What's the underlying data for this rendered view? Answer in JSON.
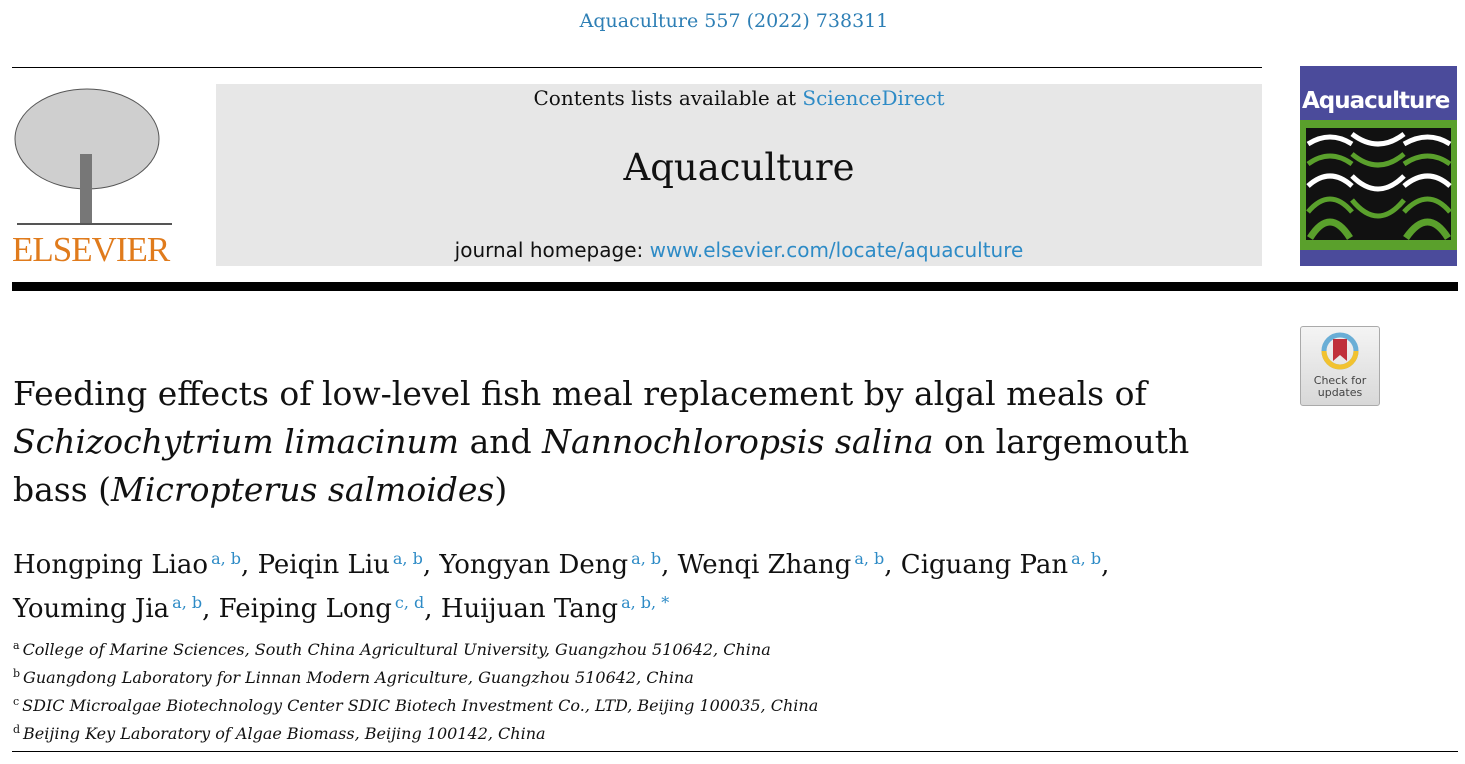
{
  "header": {
    "citation": "Aquaculture 557 (2022) 738311",
    "publisher_logo": "ELSEVIER",
    "contents_prefix": "Contents lists available at ",
    "contents_link": "ScienceDirect",
    "journal_name": "Aquaculture",
    "homepage_prefix": "journal homepage: ",
    "homepage_link": "www.elsevier.com/locate/aquaculture",
    "cover_title": "Aquaculture",
    "crossmark_label": "Check for updates"
  },
  "article": {
    "title_parts": [
      "Feeding effects of low-level fish meal replacement by algal meals of ",
      "Schizochytrium limacinum",
      " and ",
      "Nannochloropsis salina",
      " on largemouth bass (",
      "Micropterus salmoides",
      ")"
    ],
    "authors": [
      {
        "name": "Hongping Liao",
        "aff": "a, b"
      },
      {
        "name": "Peiqin Liu",
        "aff": "a, b"
      },
      {
        "name": "Yongyan Deng",
        "aff": "a, b"
      },
      {
        "name": "Wenqi Zhang",
        "aff": "a, b"
      },
      {
        "name": "Ciguang Pan",
        "aff": "a, b"
      },
      {
        "name": "Youming Jia",
        "aff": "a, b"
      },
      {
        "name": "Feiping Long",
        "aff": "c, d"
      },
      {
        "name": "Huijuan Tang",
        "aff": "a, b, *"
      }
    ],
    "affiliations": [
      {
        "key": "a",
        "text": "College of Marine Sciences, South China Agricultural University, Guangzhou 510642, China"
      },
      {
        "key": "b",
        "text": "Guangdong Laboratory for Linnan Modern Agriculture, Guangzhou 510642, China"
      },
      {
        "key": "c",
        "text": "SDIC Microalgae Biotechnology Center SDIC Biotech Investment Co., LTD, Beijing 100035, China"
      },
      {
        "key": "d",
        "text": "Beijing Key Laboratory of Algae Biomass, Beijing 100142, China"
      }
    ]
  },
  "colors": {
    "link": "#2e8bc6",
    "elsevier_orange": "#e07b1c",
    "cover_blue": "#4b4b9b",
    "cover_green": "#5aa02c"
  }
}
